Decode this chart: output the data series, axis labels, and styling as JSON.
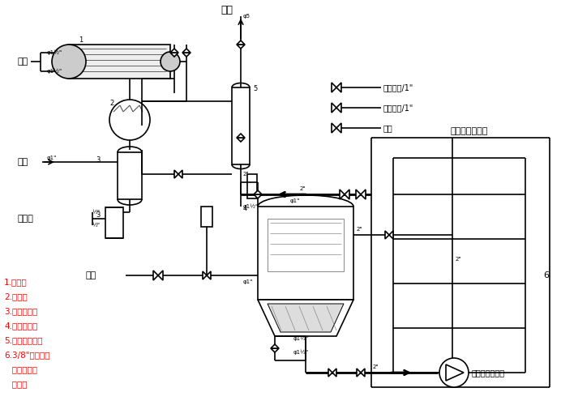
{
  "bg_color": "#ffffff",
  "line_color": "#000000",
  "legend_color": "#ff0000",
  "labels": {
    "fang_kong": "放空",
    "xia_shui": "下水",
    "shang_shui": "上水",
    "hui_fa_you": "挥发油",
    "zheng_qi": "蒸汽",
    "ya_suo": "压缩空气/1\"",
    "jie_zhen": "接真空泵/1\"",
    "shang_shui2": "上水",
    "qu_jian": "去煎煮饭液贮槽",
    "beng": "泵（用户自备）",
    "label1": "1",
    "label2": "2",
    "label3": "3",
    "label4": "4",
    "label5": "5",
    "label6": "6",
    "phi5": "φ5",
    "phi1": "φ1\"",
    "phi1h": "φ1½\"",
    "phi1h2": "φ1½\"",
    "two_inch": "2\"",
    "half_inch": "½\"",
    "items": [
      "1.冷凝器",
      "2.冷却器",
      "3.油水分离器",
      "4.多能提取罐",
      "5.泡沫分离器］",
      "6.3/8\"氧气胶管",
      "   接二位四通",
      "   电磁阀"
    ]
  }
}
